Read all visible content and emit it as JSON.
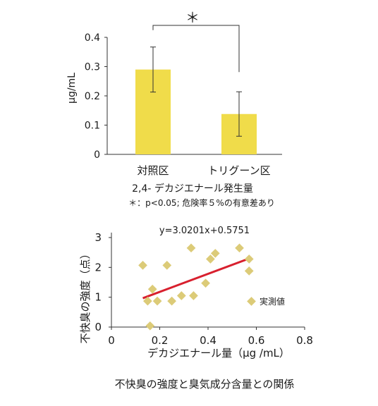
{
  "chart_data": [
    {
      "type": "bar",
      "categories": [
        "対照区",
        "トリグーン区"
      ],
      "values": [
        0.29,
        0.138
      ],
      "errors": [
        0.077,
        0.076
      ],
      "ylim": [
        0,
        0.4
      ],
      "yticks": [
        "0",
        "0.1",
        "0.2",
        "0.3",
        "0.4"
      ],
      "ylabel": "μg/mL",
      "xlabel": "2,4- デカジエナール発生量",
      "note": "＊：p<0.05; 危険率５%の有意差あり",
      "significance": "＊",
      "bar_color": "#f0dc4a"
    },
    {
      "type": "scatter",
      "equation": "y=3.0201x+0.5751",
      "slope": 3.0201,
      "intercept": 0.5751,
      "fit_range": [
        0.13,
        0.58
      ],
      "points": [
        [
          0.13,
          2.07
        ],
        [
          0.15,
          0.87
        ],
        [
          0.16,
          0.04
        ],
        [
          0.17,
          1.27
        ],
        [
          0.19,
          0.87
        ],
        [
          0.23,
          2.07
        ],
        [
          0.25,
          0.87
        ],
        [
          0.29,
          1.05
        ],
        [
          0.33,
          2.65
        ],
        [
          0.34,
          1.05
        ],
        [
          0.39,
          1.47
        ],
        [
          0.41,
          2.28
        ],
        [
          0.43,
          2.47
        ],
        [
          0.53,
          2.65
        ],
        [
          0.57,
          2.28
        ],
        [
          0.57,
          1.88
        ]
      ],
      "xlim": [
        0,
        0.8
      ],
      "ylim": [
        0,
        3
      ],
      "xticks": [
        "0",
        "0.2",
        "0.4",
        "0.6",
        "0.8"
      ],
      "yticks": [
        "0",
        "1",
        "2",
        "3"
      ],
      "xlabel": "デカジエナール量（μg /mL）",
      "ylabel": "不快臭の強度（点）",
      "legend": "実測値",
      "marker_color": "#dccb78",
      "line_color": "#d8202e",
      "caption": "不快臭の強度と臭気成分含量との関係"
    }
  ]
}
